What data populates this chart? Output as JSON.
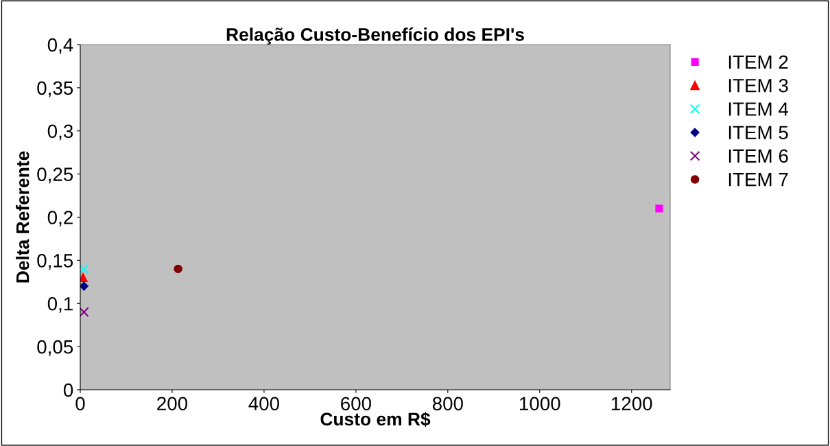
{
  "chart_data": {
    "type": "scatter",
    "title": "Relação Custo-Benefício dos EPI's",
    "xlabel": "Custo em R$",
    "ylabel": "Delta Referente",
    "xlim": [
      0,
      1284
    ],
    "xticks": [
      0,
      200,
      400,
      600,
      800,
      1000,
      1200
    ],
    "ylim": [
      0,
      0.4
    ],
    "yticks": [
      {
        "value": 0,
        "label": "0"
      },
      {
        "value": 0.05,
        "label": "0,05"
      },
      {
        "value": 0.1,
        "label": "0,1"
      },
      {
        "value": 0.15,
        "label": "0,15"
      },
      {
        "value": 0.2,
        "label": "0,2"
      },
      {
        "value": 0.25,
        "label": "0,25"
      },
      {
        "value": 0.3,
        "label": "0,3"
      },
      {
        "value": 0.35,
        "label": "0,35"
      },
      {
        "value": 0.4,
        "label": "0,4"
      }
    ],
    "grid": false,
    "legend": "right",
    "series": [
      {
        "name": "ITEM 2",
        "color": "#ff00ff",
        "marker": "square",
        "x": [
          1260
        ],
        "values": [
          0.21
        ]
      },
      {
        "name": "ITEM 3",
        "color": "#ff0000",
        "marker": "triangle",
        "x": [
          6
        ],
        "values": [
          0.13
        ]
      },
      {
        "name": "ITEM 4",
        "color": "#00ffff",
        "marker": "cross",
        "x": [
          8
        ],
        "values": [
          0.14
        ]
      },
      {
        "name": "ITEM 5",
        "color": "#000080",
        "marker": "diamond",
        "x": [
          8
        ],
        "values": [
          0.12
        ]
      },
      {
        "name": "ITEM 6",
        "color": "#800080",
        "marker": "cross",
        "x": [
          8
        ],
        "values": [
          0.09
        ]
      },
      {
        "name": "ITEM 7",
        "color": "#800000",
        "marker": "circle",
        "x": [
          213
        ],
        "values": [
          0.14
        ]
      }
    ]
  }
}
